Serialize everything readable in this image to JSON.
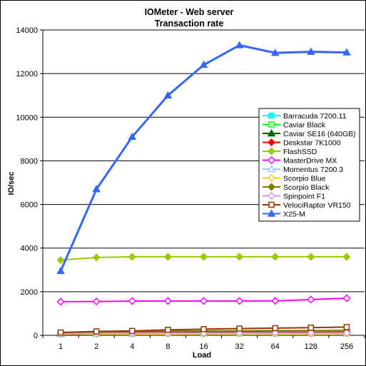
{
  "chart_data": {
    "type": "line",
    "title": "IOMeter - Web server",
    "subtitle": "Transaction rate",
    "xlabel": "Load",
    "ylabel": "IO/sec",
    "categories": [
      "1",
      "2",
      "4",
      "8",
      "16",
      "32",
      "64",
      "128",
      "256"
    ],
    "ylim": [
      0,
      14000
    ],
    "yticks": [
      0,
      2000,
      4000,
      6000,
      8000,
      10000,
      12000,
      14000
    ],
    "grid": "horizontal",
    "legend_position": "right",
    "series": [
      {
        "name": "Barracuda 7200.11",
        "color": "#00ffff",
        "marker": "square-filled",
        "values": [
          85,
          100,
          105,
          110,
          112,
          115,
          115,
          118,
          118
        ]
      },
      {
        "name": "Caviar Black",
        "color": "#00ff00",
        "marker": "square-open",
        "values": [
          90,
          120,
          130,
          140,
          145,
          150,
          150,
          152,
          155
        ]
      },
      {
        "name": "Caviar SE16 (640GB)",
        "color": "#006400",
        "marker": "triangle-filled",
        "values": [
          80,
          110,
          120,
          130,
          135,
          138,
          140,
          142,
          145
        ]
      },
      {
        "name": "Deskstar 7K1000",
        "color": "#ff0000",
        "marker": "diamond-filled",
        "values": [
          75,
          100,
          110,
          115,
          118,
          120,
          120,
          122,
          125
        ]
      },
      {
        "name": "FlashSSD",
        "color": "#99cc00",
        "marker": "diamond-filled",
        "values": [
          3450,
          3570,
          3600,
          3600,
          3600,
          3600,
          3600,
          3600,
          3600
        ]
      },
      {
        "name": "MasterDrive MX",
        "color": "#ff00ff",
        "marker": "diamond-open",
        "values": [
          1540,
          1550,
          1570,
          1575,
          1575,
          1575,
          1580,
          1640,
          1700
        ]
      },
      {
        "name": "Momentus 7200.3",
        "color": "#99ccff",
        "marker": "triangle-open",
        "values": [
          50,
          70,
          75,
          80,
          82,
          85,
          85,
          87,
          88
        ]
      },
      {
        "name": "Scorpio Blue",
        "color": "#ffcc00",
        "marker": "diamond-open",
        "values": [
          45,
          60,
          65,
          68,
          70,
          72,
          72,
          73,
          74
        ]
      },
      {
        "name": "Scorpio Black",
        "color": "#808000",
        "marker": "diamond-filled",
        "values": [
          95,
          150,
          170,
          190,
          200,
          210,
          215,
          220,
          225
        ]
      },
      {
        "name": "Spinpoint F1",
        "color": "#cc99ff",
        "marker": "diamond-open",
        "values": [
          70,
          90,
          95,
          100,
          102,
          105,
          105,
          106,
          108
        ]
      },
      {
        "name": "VelociRaptor VR150",
        "color": "#993300",
        "marker": "square-open",
        "values": [
          130,
          180,
          200,
          250,
          280,
          310,
          330,
          350,
          380
        ]
      },
      {
        "name": "X25-M",
        "color": "#3366ff",
        "marker": "triangle-filled",
        "values": [
          2950,
          6700,
          9100,
          11000,
          12400,
          13300,
          12950,
          13000,
          12970
        ]
      }
    ]
  }
}
